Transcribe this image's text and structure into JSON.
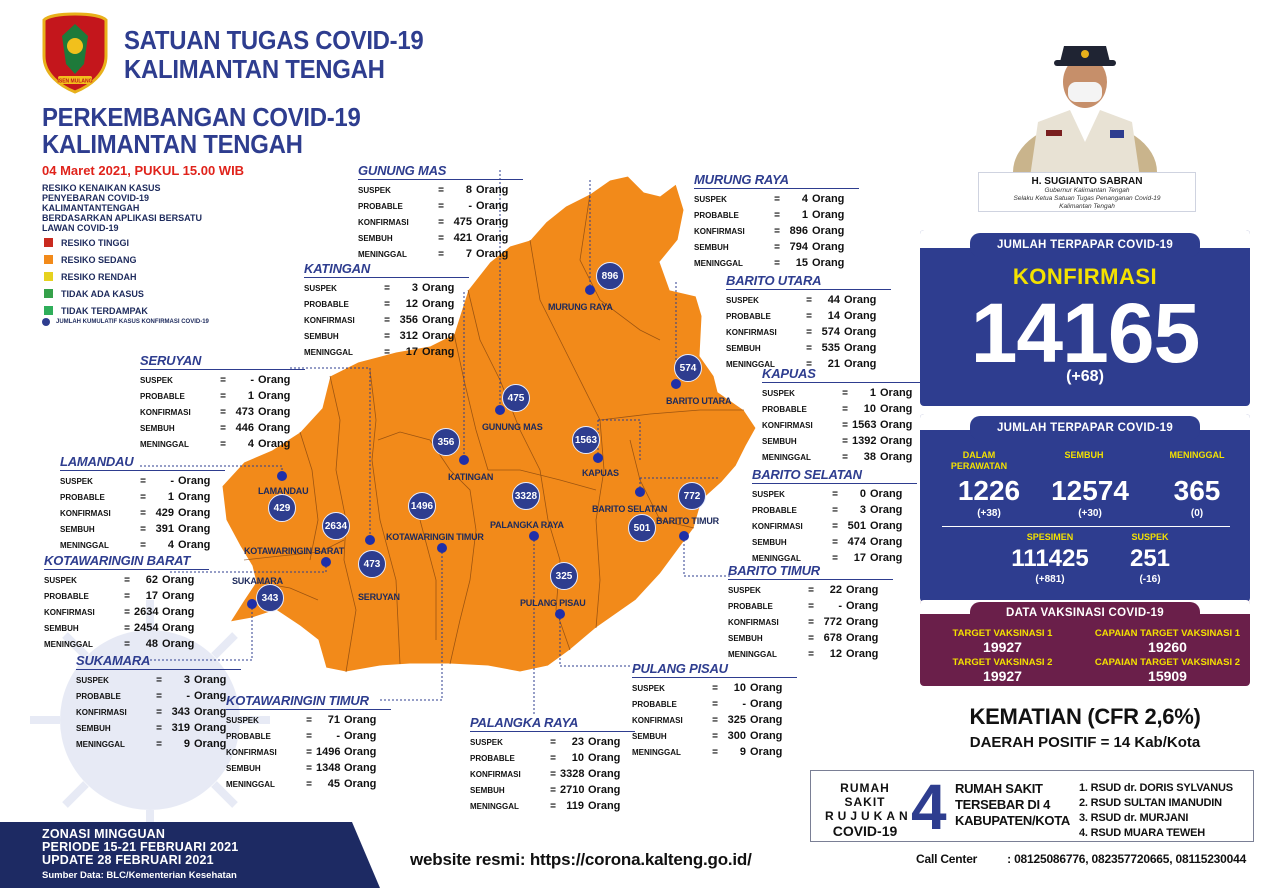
{
  "header": {
    "org_line1": "SATUAN TUGAS COVID-19",
    "org_line2": "KALIMANTAN TENGAH",
    "title_line1": "PERKEMBANGAN COVID-19",
    "title_line2": "KALIMANTAN TENGAH",
    "date": "04 Maret 2021, PUKUL 15.00 WIB",
    "logo_text": "ISEN MULANG"
  },
  "legend": {
    "title": "RESIKO KENAIKAN KASUS PENYEBARAN COVID-19 KALIMANTANTENGAH BERDASARKAN APLIKASI BERSATU LAWAN COVID-19",
    "items": [
      {
        "label": "RESIKO TINGGI",
        "color": "#c92a1f"
      },
      {
        "label": "RESIKO SEDANG",
        "color": "#f28a1a"
      },
      {
        "label": "RESIKO RENDAH",
        "color": "#e6d21f"
      },
      {
        "label": "TIDAK ADA KASUS",
        "color": "#35a14a"
      },
      {
        "label": "TIDAK TERDAMPAK",
        "color": "#2fae5a"
      }
    ],
    "dot_label": "JUMLAH KUMULATIF KASUS KONFIRMASI COVID-19"
  },
  "labels": {
    "suspek": "SUSPEK",
    "probable": "PROBABLE",
    "konfirmasi": "KONFIRMASI",
    "sembuh": "SEMBUH",
    "meninggal": "MENINGGAL",
    "eq": "=",
    "unit": "Orang"
  },
  "map": {
    "fill_color": "#f28a1a",
    "dot_color": "#2e3d8f",
    "map_labels": [
      "MURUNG RAYA",
      "BARITO UTARA",
      "GUNUNG MAS",
      "KATINGAN",
      "KAPUAS",
      "LAMANDAU",
      "KOTAWARINGIN BARAT",
      "SUKAMARA",
      "KOTAWARINGIN TIMUR",
      "PALANGKA RAYA",
      "BARITO SELATAN",
      "BARITO TIMUR",
      "SERUYAN",
      "PULANG PISAU"
    ],
    "dots": [
      "896",
      "574",
      "475",
      "356",
      "1563",
      "429",
      "2634",
      "343",
      "1496",
      "473",
      "3328",
      "501",
      "772",
      "325"
    ]
  },
  "regions": [
    {
      "name": "GUNUNG MAS",
      "suspek": "8",
      "probable": "-",
      "konfirmasi": "475",
      "sembuh": "421",
      "meninggal": "7"
    },
    {
      "name": "MURUNG RAYA",
      "suspek": "4",
      "probable": "1",
      "konfirmasi": "896",
      "sembuh": "794",
      "meninggal": "15"
    },
    {
      "name": "KATINGAN",
      "suspek": "3",
      "probable": "12",
      "konfirmasi": "356",
      "sembuh": "312",
      "meninggal": "17"
    },
    {
      "name": "BARITO UTARA",
      "suspek": "44",
      "probable": "14",
      "konfirmasi": "574",
      "sembuh": "535",
      "meninggal": "21"
    },
    {
      "name": "SERUYAN",
      "suspek": "-",
      "probable": "1",
      "konfirmasi": "473",
      "sembuh": "446",
      "meninggal": "4"
    },
    {
      "name": "KAPUAS",
      "suspek": "1",
      "probable": "10",
      "konfirmasi": "1563",
      "sembuh": "1392",
      "meninggal": "38"
    },
    {
      "name": "LAMANDAU",
      "suspek": "-",
      "probable": "1",
      "konfirmasi": "429",
      "sembuh": "391",
      "meninggal": "4"
    },
    {
      "name": "BARITO SELATAN",
      "suspek": "0",
      "probable": "3",
      "konfirmasi": "501",
      "sembuh": "474",
      "meninggal": "17"
    },
    {
      "name": "KOTAWARINGIN BARAT",
      "suspek": "62",
      "probable": "17",
      "konfirmasi": "2634",
      "sembuh": "2454",
      "meninggal": "48"
    },
    {
      "name": "BARITO TIMUR",
      "suspek": "22",
      "probable": "-",
      "konfirmasi": "772",
      "sembuh": "678",
      "meninggal": "12"
    },
    {
      "name": "SUKAMARA",
      "suspek": "3",
      "probable": "-",
      "konfirmasi": "343",
      "sembuh": "319",
      "meninggal": "9"
    },
    {
      "name": "PULANG PISAU",
      "suspek": "10",
      "probable": "-",
      "konfirmasi": "325",
      "sembuh": "300",
      "meninggal": "9"
    },
    {
      "name": "KOTAWARINGIN TIMUR",
      "suspek": "71",
      "probable": "-",
      "konfirmasi": "1496",
      "sembuh": "1348",
      "meninggal": "45"
    },
    {
      "name": "PALANGKA RAYA",
      "suspek": "23",
      "probable": "10",
      "konfirmasi": "3328",
      "sembuh": "2710",
      "meninggal": "119"
    }
  ],
  "governor": {
    "name": "H. SUGIANTO SABRAN",
    "role1": "Gubernur Kalimantan Tengah",
    "role2": "Selaku Ketua Satuan Tugas Penanganan Covid-19",
    "role3": "Kalimantan Tengah"
  },
  "summary": {
    "head1": "JUMLAH TERPAPAR COVID-19",
    "konfirmasi_label": "KONFIRMASI",
    "konfirmasi": "14165",
    "konfirmasi_delta": "(+68)",
    "head2": "JUMLAH TERPAPAR COVID-19",
    "perawatan_label1": "DALAM",
    "perawatan_label2": "PERAWATAN",
    "perawatan": "1226",
    "perawatan_delta": "(+38)",
    "sembuh_label": "SEMBUH",
    "sembuh": "12574",
    "sembuh_delta": "(+30)",
    "meninggal_label": "MENINGGAL",
    "meninggal": "365",
    "meninggal_delta": "(0)",
    "spesimen_label": "SPESIMEN",
    "spesimen": "111425",
    "spesimen_delta": "(+881)",
    "suspek_label": "SUSPEK",
    "suspek": "251",
    "suspek_delta": "(-16)"
  },
  "vaksinasi": {
    "head": "DATA VAKSINASI COVID-19",
    "target1_label": "TARGET VAKSINASI 1",
    "target1": "19927",
    "capaian1_label": "CAPAIAN TARGET VAKSINASI 1",
    "capaian1": "19260",
    "target2_label": "TARGET VAKSINASI 2",
    "target2": "19927",
    "capaian2_label": "CAPAIAN TARGET VAKSINASI 2",
    "capaian2": "15909"
  },
  "cfr": "KEMATIAN (CFR 2,6%)",
  "daerah": "DAERAH POSITIF = 14 Kab/Kota",
  "rumah_sakit": {
    "left1": "RUMAH SAKIT",
    "left2": "RUJUKAN",
    "left3": "COVID-19",
    "count": "4",
    "mid1": "RUMAH SAKIT",
    "mid2": "TERSEBAR DI 4",
    "mid3": "KABUPATEN/KOTA",
    "list": [
      "1. RSUD dr. DORIS SYLVANUS",
      "2. RSUD SULTAN IMANUDIN",
      "3. RSUD dr. MURJANI",
      "4. RSUD MUARA TEWEH"
    ]
  },
  "call_center": {
    "label": "Call Center",
    "numbers": ": 08125086776, 082357720665, 08115230044"
  },
  "website": "website resmi: https://corona.kalteng.go.id/",
  "zonasi": {
    "line1": "ZONASI MINGGUAN",
    "line2": "PERIODE 15-21 FEBRUARI 2021",
    "line3": "UPDATE 28 FEBRUARI 2021",
    "source": "Sumber Data: BLC/Kementerian Kesehatan"
  }
}
